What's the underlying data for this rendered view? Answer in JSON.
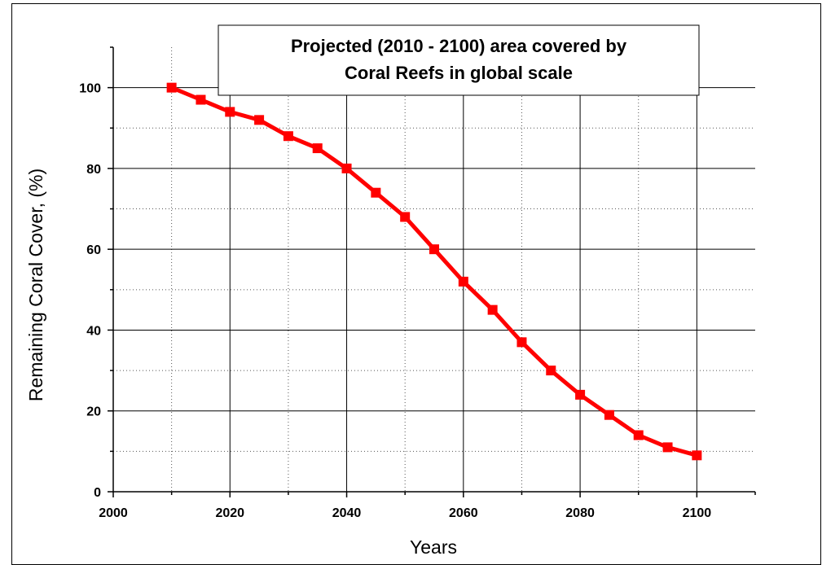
{
  "chart_data": {
    "type": "line",
    "title_lines": [
      "Projected (2010 - 2100) area covered by",
      "Coral Reefs in global  scale"
    ],
    "xlabel": "Years",
    "ylabel": "Remaining Coral Cover, (%)",
    "xlim": [
      2000,
      2110
    ],
    "ylim": [
      0,
      110
    ],
    "x_ticks": [
      2000,
      2020,
      2040,
      2060,
      2080,
      2100
    ],
    "y_ticks": [
      0,
      20,
      40,
      60,
      80,
      100
    ],
    "grid": true,
    "series": [
      {
        "color": "#ff0000",
        "marker": "square",
        "x": [
          2010,
          2015,
          2020,
          2025,
          2030,
          2035,
          2040,
          2045,
          2050,
          2055,
          2060,
          2065,
          2070,
          2075,
          2080,
          2085,
          2090,
          2095,
          2100
        ],
        "values": [
          100,
          97,
          94,
          92,
          88,
          85,
          80,
          74,
          68,
          60,
          52,
          45,
          37,
          30,
          24,
          19,
          14,
          11,
          9
        ]
      }
    ]
  }
}
